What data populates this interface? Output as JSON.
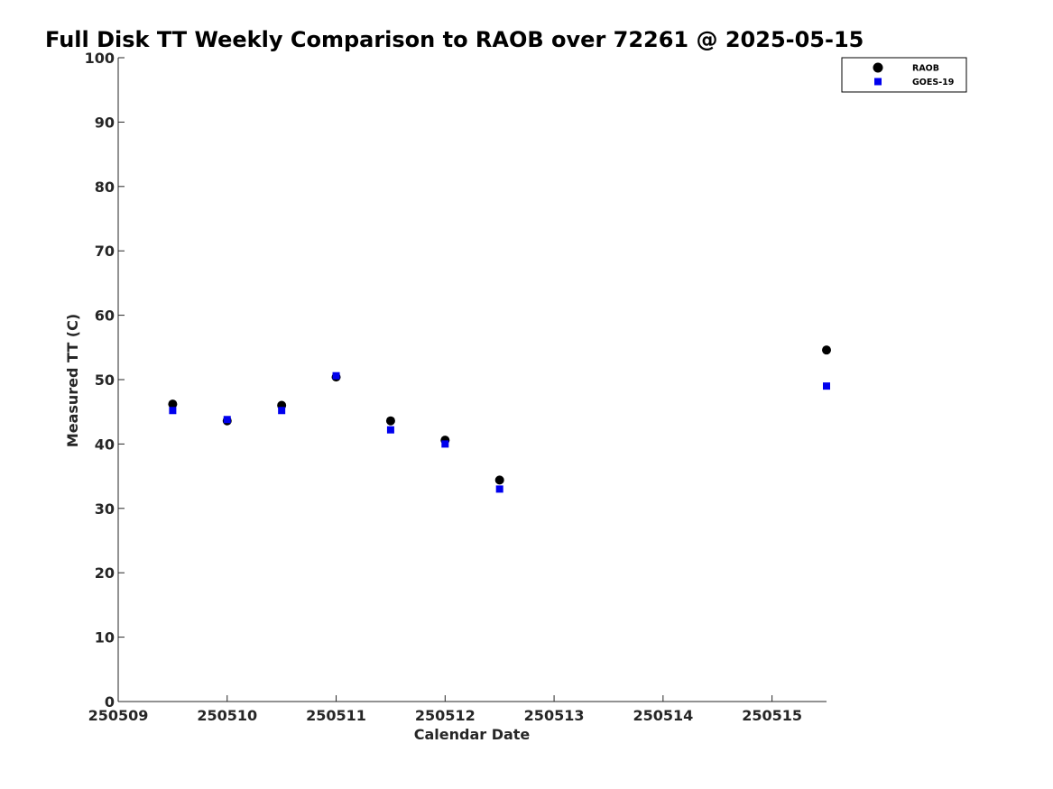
{
  "chart_data": {
    "type": "scatter",
    "title": "Full Disk TT Weekly Comparison to RAOB over 72261 @ 2025-05-15",
    "xlabel": "Calendar Date",
    "ylabel": "Measured TT (C)",
    "xlim": [
      250509,
      250515.5
    ],
    "ylim": [
      0,
      100
    ],
    "xticks": [
      250509,
      250510,
      250511,
      250512,
      250513,
      250514,
      250515
    ],
    "xtick_labels": [
      "250509",
      "250510",
      "250511",
      "250512",
      "250513",
      "250514",
      "250515"
    ],
    "yticks": [
      0,
      10,
      20,
      30,
      40,
      50,
      60,
      70,
      80,
      90,
      100
    ],
    "ytick_labels": [
      "0",
      "10",
      "20",
      "30",
      "40",
      "50",
      "60",
      "70",
      "80",
      "90",
      "100"
    ],
    "grid": false,
    "legend_position": "top-right",
    "series": [
      {
        "name": "RAOB",
        "marker": "circle",
        "color": "#000000",
        "x": [
          250509.5,
          250510.0,
          250510.5,
          250511.0,
          250511.5,
          250512.0,
          250512.5,
          250515.5
        ],
        "y": [
          46.2,
          43.6,
          46.0,
          50.4,
          43.6,
          40.6,
          34.4,
          54.6
        ]
      },
      {
        "name": "GOES-19",
        "marker": "square",
        "color": "#0000ee",
        "x": [
          250509.5,
          250510.0,
          250510.5,
          250511.0,
          250511.5,
          250512.0,
          250512.5,
          250515.5
        ],
        "y": [
          45.2,
          43.8,
          45.2,
          50.6,
          42.2,
          40.0,
          33.0,
          49.0
        ]
      }
    ]
  }
}
